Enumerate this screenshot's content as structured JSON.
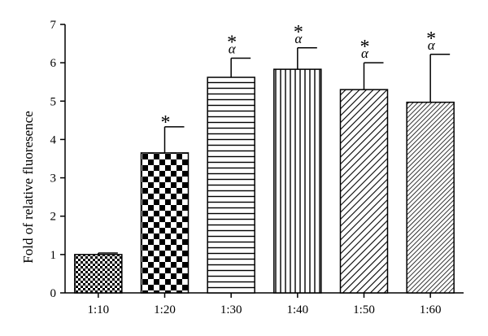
{
  "chart_data": {
    "type": "bar",
    "title": "",
    "xlabel": "",
    "ylabel": "Fold of relative fluoresence",
    "ylim": [
      0,
      7
    ],
    "yticks": [
      0,
      1,
      2,
      3,
      4,
      5,
      6,
      7
    ],
    "grid": false,
    "categories": [
      "1:10",
      "1:20",
      "1:30",
      "1:40",
      "1:50",
      "1:60"
    ],
    "values": [
      1.0,
      3.65,
      5.62,
      5.83,
      5.3,
      4.97
    ],
    "errors": [
      0.04,
      0.68,
      0.5,
      0.56,
      0.7,
      1.25
    ],
    "patterns": [
      "small-checker",
      "large-checker",
      "horizontal-lines",
      "vertical-lines",
      "diagonal-lines",
      "fine-diagonal-lines"
    ],
    "significance_star": [
      "",
      "*",
      "*",
      "*",
      "*",
      "*"
    ],
    "significance_alpha": [
      "",
      "",
      "α",
      "α",
      "α",
      "α"
    ]
  }
}
